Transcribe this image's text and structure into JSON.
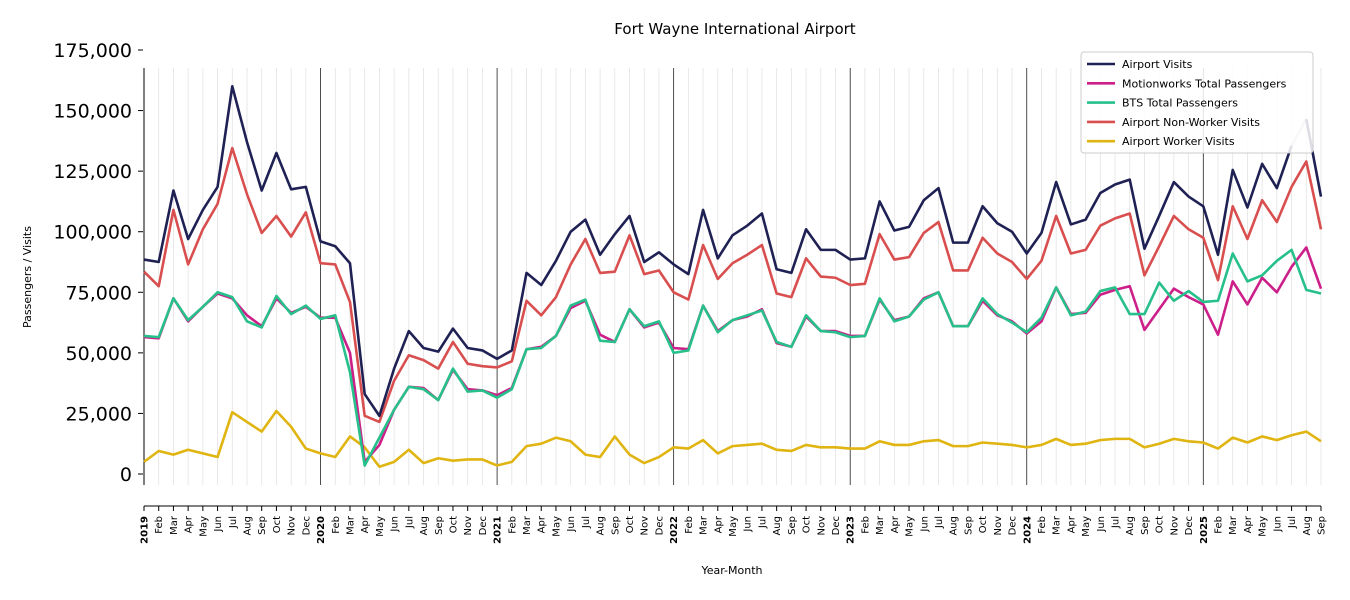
{
  "chart_data": {
    "type": "line",
    "title": "Fort Wayne International Airport",
    "xlabel": "Year-Month",
    "ylabel": "Passengers / Visits",
    "ylim": [
      -12000,
      175000
    ],
    "yticks": [
      0,
      25000,
      50000,
      75000,
      100000,
      125000,
      150000,
      175000
    ],
    "ytick_labels": [
      "0",
      "25,000",
      "50,000",
      "75,000",
      "100,000",
      "125,000",
      "150,000",
      "175,000"
    ],
    "legend_position": "top-right",
    "grid": "vertical-monthly",
    "x": [
      "2019",
      "Feb",
      "Mar",
      "Apr",
      "May",
      "Jun",
      "Jul",
      "Aug",
      "Sep",
      "Oct",
      "Nov",
      "Dec",
      "2020",
      "Feb",
      "Mar",
      "Apr",
      "May",
      "Jun",
      "Jul",
      "Aug",
      "Sep",
      "Oct",
      "Nov",
      "Dec",
      "2021",
      "Feb",
      "Mar",
      "Apr",
      "May",
      "Jun",
      "Jul",
      "Aug",
      "Sep",
      "Oct",
      "Nov",
      "Dec",
      "2022",
      "Feb",
      "Mar",
      "Apr",
      "May",
      "Jun",
      "Jul",
      "Aug",
      "Sep",
      "Oct",
      "Nov",
      "Dec",
      "2023",
      "Feb",
      "Mar",
      "Apr",
      "May",
      "Jun",
      "Jul",
      "Aug",
      "Sep",
      "Oct",
      "Nov",
      "Dec",
      "2024",
      "Feb",
      "Mar",
      "Apr",
      "May",
      "Jun",
      "Jul",
      "Aug",
      "Sep",
      "Oct",
      "Nov",
      "Dec",
      "2025",
      "Feb",
      "Mar",
      "Apr",
      "May",
      "Jun",
      "Jul",
      "Aug",
      "Sep"
    ],
    "year_labels": [
      "2019",
      "2020",
      "2021",
      "2022",
      "2023",
      "2024",
      "2025"
    ],
    "series": [
      {
        "name": "Airport Visits",
        "color": "#1f2154",
        "values": [
          88500,
          87500,
          117000,
          97000,
          109000,
          118500,
          160000,
          137000,
          117000,
          132500,
          117500,
          118500,
          96000,
          94000,
          87000,
          33000,
          24000,
          43500,
          59000,
          52000,
          50500,
          60000,
          52000,
          51000,
          47500,
          51000,
          83000,
          78000,
          88000,
          100000,
          105000,
          90500,
          99000,
          106500,
          87500,
          91500,
          86500,
          82500,
          109000,
          89000,
          98500,
          102500,
          107500,
          84500,
          83000,
          101000,
          92500,
          92500,
          88500,
          89000,
          112500,
          100500,
          102000,
          113000,
          118000,
          95500,
          95500,
          110500,
          103500,
          100000,
          91000,
          99500,
          120500,
          103000,
          105000,
          116000,
          119500,
          121500,
          93000,
          106500,
          120500,
          114500,
          110500,
          90500,
          125500,
          110000,
          128000,
          118000,
          135500,
          146500,
          114500
        ],
        "segment_colors": [
          {
            "from_index": 77,
            "color": "#1f2154"
          },
          {
            "from_index": 78,
            "color": "#cfcfdc"
          }
        ]
      },
      {
        "name": "Motionworks Total Passengers",
        "color": "#cc1f8a",
        "values": [
          56500,
          56000,
          72500,
          63000,
          69000,
          74500,
          72500,
          65500,
          61000,
          72500,
          66500,
          69000,
          64500,
          64500,
          50000,
          5000,
          12000,
          26500,
          36000,
          35500,
          30500,
          43000,
          35000,
          34500,
          32500,
          35500,
          51500,
          52500,
          57000,
          68500,
          71500,
          57500,
          54500,
          68000,
          60500,
          62500,
          52000,
          51500,
          69500,
          59000,
          63500,
          65000,
          68000,
          54000,
          52500,
          65000,
          59000,
          59000,
          57000,
          57000,
          72000,
          63500,
          65000,
          72500,
          75000,
          61000,
          61000,
          71500,
          65500,
          63000,
          58000,
          63000,
          77000,
          66000,
          66500,
          74000,
          76000,
          77500,
          59500,
          68000,
          76500,
          73000,
          70000,
          57500,
          79500,
          70000,
          81000,
          75000,
          85500,
          93500,
          76500
        ]
      },
      {
        "name": "BTS Total Passengers",
        "color": "#27c08a",
        "values": [
          57000,
          56500,
          72500,
          63500,
          69000,
          75000,
          73000,
          63000,
          60500,
          73500,
          66000,
          69500,
          64000,
          65500,
          42000,
          3500,
          15000,
          26500,
          36000,
          35000,
          30500,
          43500,
          34000,
          34500,
          31500,
          35000,
          51500,
          52000,
          57000,
          69500,
          72000,
          55000,
          54500,
          68000,
          61000,
          63000,
          50000,
          51000,
          69500,
          58500,
          63500,
          65500,
          67500,
          54500,
          52500,
          65500,
          59000,
          58500,
          56500,
          57000,
          72500,
          63000,
          65000,
          72000,
          75000,
          61000,
          61000,
          72500,
          66000,
          62500,
          58500,
          64500,
          77000,
          65500,
          67000,
          75500,
          77000,
          66000,
          66000,
          79000,
          71500,
          75500,
          71000,
          71500,
          91000,
          79500,
          82000,
          88000,
          92500,
          76000,
          74500
        ]
      },
      {
        "name": "Airport Non-Worker Visits",
        "color": "#d94f4f",
        "values": [
          83500,
          77500,
          109000,
          86500,
          101000,
          111500,
          134500,
          115500,
          99500,
          106500,
          98000,
          108000,
          87000,
          86500,
          71000,
          24000,
          21500,
          38500,
          49000,
          47000,
          43500,
          54500,
          45500,
          44500,
          44000,
          46500,
          71500,
          65500,
          73000,
          86500,
          97000,
          83000,
          83500,
          98500,
          82500,
          84000,
          75000,
          72000,
          94500,
          80500,
          87000,
          90500,
          94500,
          74500,
          73000,
          89000,
          81500,
          81000,
          78000,
          78500,
          99000,
          88500,
          89500,
          99500,
          104000,
          84000,
          84000,
          97500,
          91000,
          87500,
          80500,
          88000,
          106500,
          91000,
          92500,
          102500,
          105500,
          107500,
          82000,
          94000,
          106500,
          101000,
          97500,
          80000,
          110500,
          97000,
          113000,
          104000,
          118500,
          129000,
          101000
        ]
      },
      {
        "name": "Airport Worker Visits",
        "color": "#e0b411",
        "values": [
          5000,
          9500,
          8000,
          10000,
          8500,
          7000,
          25500,
          21500,
          17500,
          26000,
          19500,
          10500,
          8500,
          7000,
          15500,
          11000,
          3000,
          5000,
          10000,
          4500,
          6500,
          5500,
          6000,
          6000,
          3500,
          5000,
          11500,
          12500,
          15000,
          13500,
          8000,
          7000,
          15500,
          8000,
          4500,
          7000,
          11000,
          10500,
          14000,
          8500,
          11500,
          12000,
          12500,
          10000,
          9500,
          12000,
          11000,
          11000,
          10500,
          10500,
          13500,
          12000,
          12000,
          13500,
          14000,
          11500,
          11500,
          13000,
          12500,
          12000,
          11000,
          12000,
          14500,
          12000,
          12500,
          14000,
          14500,
          14500,
          11000,
          12500,
          14500,
          13500,
          13000,
          10500,
          15000,
          13000,
          15500,
          14000,
          16000,
          17500,
          13500
        ]
      }
    ]
  }
}
